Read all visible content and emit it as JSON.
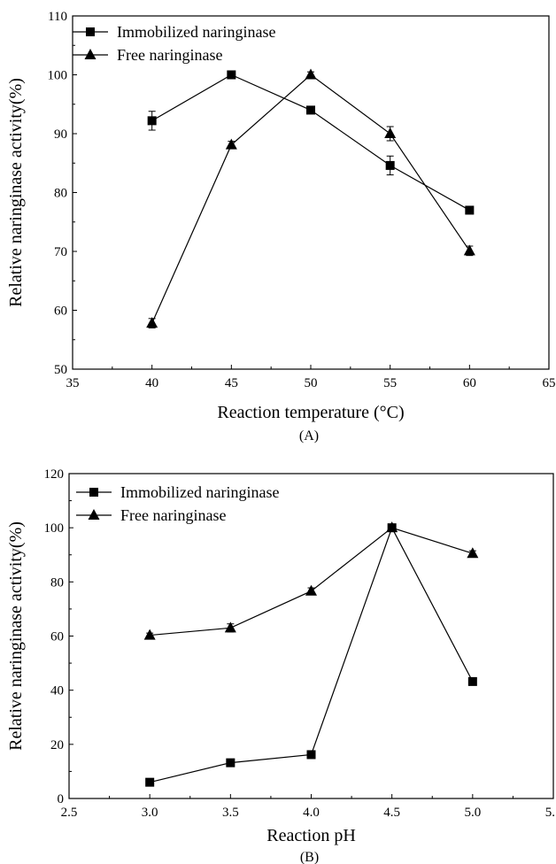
{
  "chart_data": [
    {
      "type": "line",
      "panel_label": "(A)",
      "xlabel": "Reaction temperature (°C)",
      "ylabel": "Relative naringinase activity(%)",
      "xlim": [
        35,
        65
      ],
      "ylim": [
        50,
        110
      ],
      "x_ticks": [
        "35",
        "40",
        "45",
        "50",
        "55",
        "60",
        "65"
      ],
      "y_ticks": [
        "50",
        "60",
        "70",
        "80",
        "90",
        "100",
        "110"
      ],
      "legend_position": "top-left",
      "series": [
        {
          "name": "Immobilized naringinase",
          "marker": "square",
          "x": [
            40,
            45,
            50,
            55,
            60
          ],
          "values": [
            92.2,
            100,
            94,
            84.6,
            77
          ],
          "errors": [
            1.6,
            0.5,
            0.5,
            1.6,
            0.5
          ]
        },
        {
          "name": "Free naringinase",
          "marker": "triangle",
          "x": [
            40,
            45,
            50,
            55,
            60
          ],
          "values": [
            57.8,
            88.1,
            100,
            90,
            70.1
          ],
          "errors": [
            0.8,
            0.6,
            0.5,
            1.2,
            0.8
          ]
        }
      ]
    },
    {
      "type": "line",
      "panel_label": "(B)",
      "xlabel": "Reaction pH",
      "ylabel": "Relative naringinase activity(%)",
      "xlim": [
        2.5,
        5.5
      ],
      "ylim": [
        0,
        120
      ],
      "x_ticks": [
        "2.5",
        "3.0",
        "3.5",
        "4.0",
        "4.5",
        "5.0",
        "5."
      ],
      "y_ticks": [
        "0",
        "20",
        "40",
        "60",
        "80",
        "100",
        "120"
      ],
      "legend_position": "top-left",
      "series": [
        {
          "name": "Immobilized naringinase",
          "marker": "square",
          "x": [
            3.0,
            3.5,
            4.0,
            4.5,
            5.0
          ],
          "values": [
            6,
            13.2,
            16.2,
            100,
            43.2
          ],
          "errors": [
            0.5,
            0.5,
            0.5,
            1.2,
            0.5
          ]
        },
        {
          "name": "Free naringinase",
          "marker": "triangle",
          "x": [
            3.0,
            3.5,
            4.0,
            4.5,
            5.0
          ],
          "values": [
            60.3,
            63,
            76.6,
            100,
            90.5
          ],
          "errors": [
            0.8,
            1.5,
            1.2,
            1.0,
            1.0
          ]
        }
      ]
    }
  ]
}
